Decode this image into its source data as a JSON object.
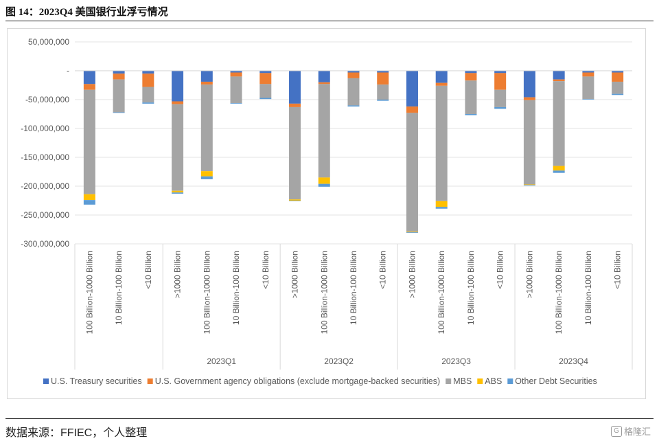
{
  "figure": {
    "title": "图 14：2023Q4 美国银行业浮亏情况",
    "source": "数据来源：FFIEC，个人整理",
    "watermark": "格隆汇",
    "watermark_icon": "g-logo-icon"
  },
  "chart_data": {
    "type": "bar",
    "stacked": true,
    "ylim": [
      -300000000,
      50000000
    ],
    "yticks": [
      50000000,
      0,
      -50000000,
      -100000000,
      -150000000,
      -200000000,
      -250000000,
      -300000000
    ],
    "ytick_labels": [
      "50,000,000",
      "-",
      "-50,000,000",
      "-100,000,000",
      "-150,000,000",
      "-200,000,000",
      "-250,000,000",
      "-300,000,000"
    ],
    "grid": "horizontal",
    "legend_position": "bottom",
    "groups": [
      {
        "label": "",
        "categories": [
          "100 Billion-1000 Billion",
          "10 Billion-100 Billion",
          "<10 Billion"
        ]
      },
      {
        "label": "2023Q1",
        "categories": [
          ">1000 Billion",
          "100 Billion-1000 Billion",
          "10 Billion-100 Billion",
          "<10 Billion"
        ]
      },
      {
        "label": "2023Q2",
        "categories": [
          ">1000 Billion",
          "100 Billion-1000 Billion",
          "10 Billion-100 Billion",
          "<10 Billion"
        ]
      },
      {
        "label": "2023Q3",
        "categories": [
          ">1000 Billion",
          "100 Billion-1000 Billion",
          "10 Billion-100 Billion",
          "<10 Billion"
        ]
      },
      {
        "label": "2023Q4",
        "categories": [
          ">1000 Billion",
          "100 Billion-1000 Billion",
          "10 Billion-100 Billion",
          "<10 Billion"
        ]
      }
    ],
    "series": [
      {
        "name": "U.S. Treasury securities",
        "color": "#4472C4",
        "values": [
          -23000000,
          -5000000,
          -5000000,
          -53000000,
          -19000000,
          -3000000,
          -4000000,
          -57000000,
          -20000000,
          -3000000,
          -3000000,
          -62000000,
          -21000000,
          -4000000,
          -4000000,
          -46000000,
          -15000000,
          -3000000,
          -3000000
        ]
      },
      {
        "name": "U.S. Government agency obligations (exclude mortgage-backed securities)",
        "color": "#ED7D31",
        "values": [
          -10000000,
          -10000000,
          -23000000,
          -5000000,
          -5000000,
          -7000000,
          -19000000,
          -6000000,
          -3000000,
          -10000000,
          -21000000,
          -11000000,
          -5000000,
          -13000000,
          -29000000,
          -5000000,
          -3000000,
          -7000000,
          -16000000
        ]
      },
      {
        "name": "MBS",
        "color": "#A5A5A5",
        "values": [
          -181000000,
          -57000000,
          -27000000,
          -150000000,
          -150000000,
          -46000000,
          -24000000,
          -160000000,
          -162000000,
          -47000000,
          -26000000,
          -206000000,
          -200000000,
          -58000000,
          -30000000,
          -146000000,
          -147000000,
          -39000000,
          -21000000
        ]
      },
      {
        "name": "ABS",
        "color": "#FFC000",
        "values": [
          -10000000,
          0,
          0,
          -3000000,
          -9000000,
          0,
          0,
          -2000000,
          -11000000,
          0,
          0,
          -1000000,
          -10000000,
          0,
          0,
          -1000000,
          -8000000,
          0,
          0
        ]
      },
      {
        "name": "Other Debt Securities",
        "color": "#5B9BD5",
        "values": [
          -8000000,
          -1000000,
          -2000000,
          -2000000,
          -5000000,
          -1000000,
          -2000000,
          -1000000,
          -5000000,
          -2000000,
          -2000000,
          -1000000,
          -3000000,
          -2000000,
          -3000000,
          -1000000,
          -4000000,
          -1000000,
          -2000000
        ]
      }
    ]
  }
}
